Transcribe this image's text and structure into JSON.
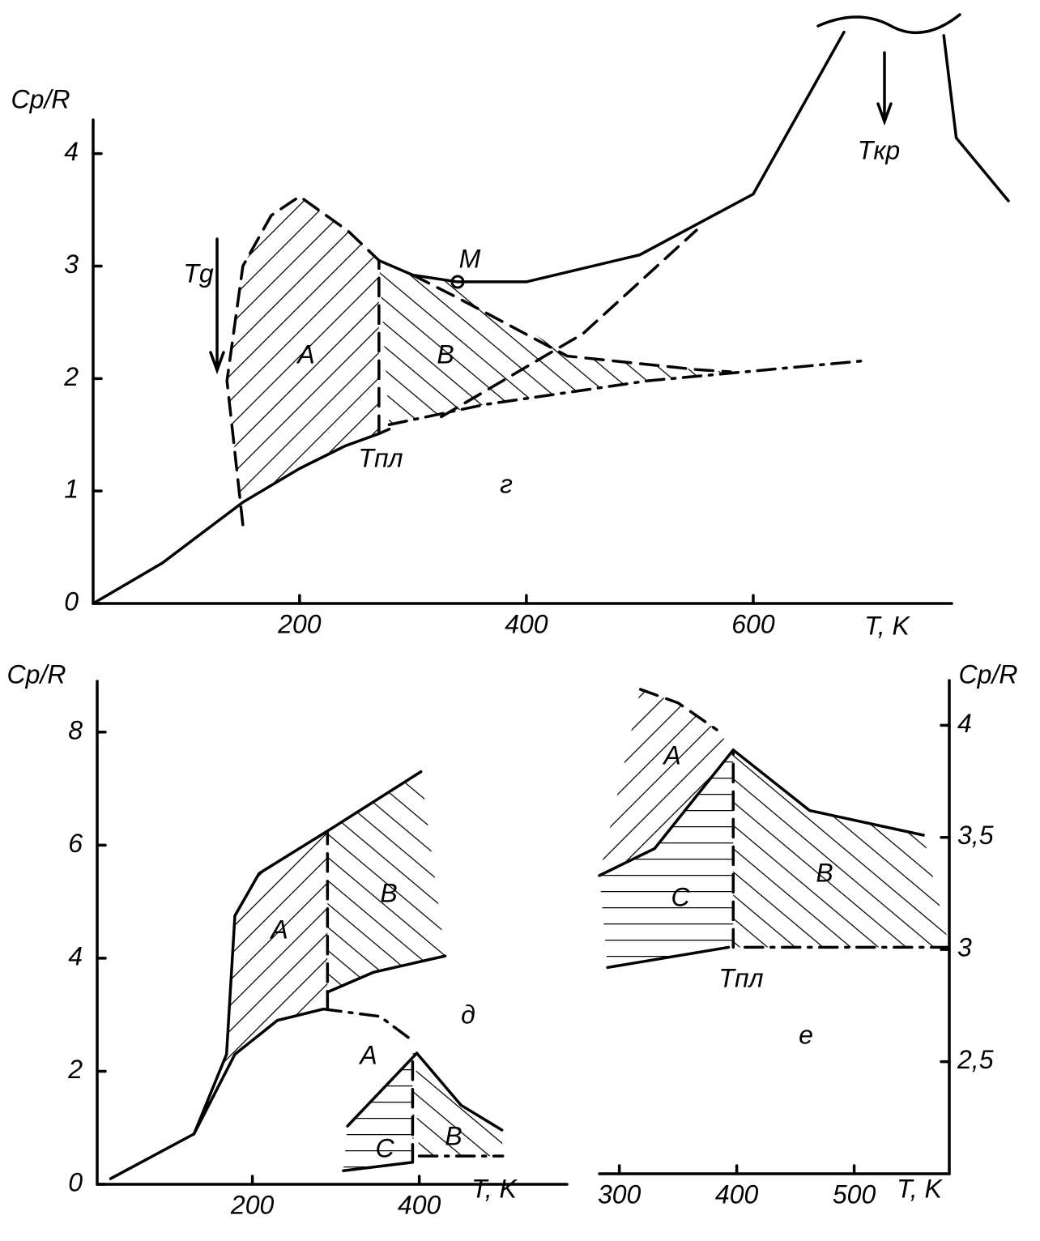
{
  "chart_data": [
    {
      "type": "line",
      "panel": "г",
      "xlabel": "T, K",
      "ylabel": "Cp/R",
      "yaxis": "left",
      "xlim": [
        18,
        775
      ],
      "ylim": [
        0,
        4.3
      ],
      "xticks": [
        200,
        400,
        600
      ],
      "yticks": [
        0,
        1,
        2,
        3,
        4
      ],
      "annotations": [
        "Tg",
        "A",
        "B",
        "Tпл",
        "M",
        "Tкр"
      ],
      "series": [
        {
          "style": "solid",
          "x": [
            18,
            79,
            150,
            200,
            240,
            270,
            279
          ],
          "values": [
            0,
            0.36,
            0.9,
            1.2,
            1.4,
            1.51,
            1.55
          ]
        },
        {
          "style": "dashed",
          "x": [
            150,
            136,
            150,
            175,
            200,
            243,
            270
          ],
          "values": [
            0.7,
            1.98,
            3.0,
            3.45,
            3.62,
            3.31,
            3.05
          ]
        },
        {
          "style": "solid",
          "x": [
            270,
            300,
            339,
            400,
            500,
            600,
            680
          ],
          "values": [
            3.05,
            2.92,
            2.86,
            2.86,
            3.1,
            3.64,
            5.08
          ]
        },
        {
          "style": "dashed",
          "x": [
            300,
            339,
            436,
            550,
            580
          ],
          "values": [
            2.92,
            2.72,
            2.2,
            2.08,
            2.06
          ]
        },
        {
          "style": "dashdot",
          "x": [
            279,
            364,
            507,
            700
          ],
          "values": [
            1.59,
            1.77,
            1.98,
            2.16
          ]
        },
        {
          "style": "dashed",
          "x": [
            325,
            450,
            550
          ],
          "values": [
            1.66,
            2.4,
            3.32
          ]
        },
        {
          "style": "solid",
          "x": [
            768,
            779,
            825
          ],
          "values": [
            5.05,
            4.14,
            3.58
          ]
        },
        {
          "style": "dashed",
          "x": [
            270,
            270
          ],
          "values": [
            1.51,
            3.05
          ]
        }
      ]
    },
    {
      "type": "line",
      "panel": "д",
      "xlabel": "T, K",
      "ylabel": "Cp/R",
      "yaxis": "left",
      "xlim": [
        14,
        577
      ],
      "ylim": [
        0,
        8.9
      ],
      "xticks": [
        200,
        400
      ],
      "yticks": [
        0,
        2,
        4,
        6,
        8
      ],
      "annotations": [
        "A",
        "B",
        "A",
        "C",
        "B"
      ],
      "series": [
        {
          "style": "solid",
          "x": [
            30,
            130,
            179,
            230,
            285
          ],
          "values": [
            0.1,
            0.89,
            2.3,
            2.9,
            3.1
          ]
        },
        {
          "style": "solid",
          "x": [
            130,
            169,
            179,
            208,
            290,
            402
          ],
          "values": [
            0.89,
            2.3,
            4.75,
            5.5,
            6.25,
            7.3
          ]
        },
        {
          "style": "solid",
          "x": [
            290,
            345,
            431
          ],
          "values": [
            3.4,
            3.75,
            4.04
          ]
        },
        {
          "style": "dashdot",
          "x": [
            285,
            353,
            392
          ],
          "values": [
            3.1,
            2.97,
            2.54
          ]
        },
        {
          "style": "dashed",
          "x": [
            290,
            290
          ],
          "values": [
            3.1,
            6.25
          ]
        },
        {
          "style": "solid",
          "x": [
            397,
            450,
            499
          ],
          "values": [
            2.32,
            1.4,
            0.96
          ]
        },
        {
          "style": "solid",
          "x": [
            314,
            397
          ],
          "values": [
            1.03,
            2.32
          ]
        },
        {
          "style": "solid",
          "x": [
            309,
            392
          ],
          "values": [
            0.24,
            0.39
          ]
        },
        {
          "style": "dashed",
          "x": [
            392,
            392
          ],
          "values": [
            0.39,
            2.32
          ]
        },
        {
          "style": "dashdot",
          "x": [
            400,
            500
          ],
          "values": [
            0.5,
            0.5
          ]
        }
      ]
    },
    {
      "type": "line",
      "panel": "е",
      "xlabel": "T, K",
      "ylabel": "Cp/R",
      "yaxis": "right",
      "xlim": [
        283,
        581
      ],
      "ylim": [
        2.0,
        4.2
      ],
      "xticks": [
        300,
        400,
        500
      ],
      "yticks": [
        {
          "value": 2.5,
          "label": "2,5"
        },
        3,
        {
          "value": 3.5,
          "label": "3,5"
        },
        4
      ],
      "annotations": [
        "A",
        "C",
        "B",
        "Tпл"
      ],
      "series": [
        {
          "style": "solid",
          "x": [
            283,
            330,
            397
          ],
          "values": [
            3.33,
            3.45,
            3.89
          ]
        },
        {
          "style": "dashed",
          "x": [
            318,
            350,
            383
          ],
          "values": [
            4.16,
            4.1,
            3.98
          ]
        },
        {
          "style": "solid",
          "x": [
            397,
            462,
            559
          ],
          "values": [
            3.89,
            3.62,
            3.51
          ]
        },
        {
          "style": "solid",
          "x": [
            290,
            393
          ],
          "values": [
            2.92,
            3.01
          ]
        },
        {
          "style": "dashdot",
          "x": [
            407,
            581
          ],
          "values": [
            3.01,
            3.01
          ]
        },
        {
          "style": "dashed",
          "x": [
            397,
            397
          ],
          "values": [
            3.01,
            3.89
          ]
        }
      ]
    }
  ]
}
